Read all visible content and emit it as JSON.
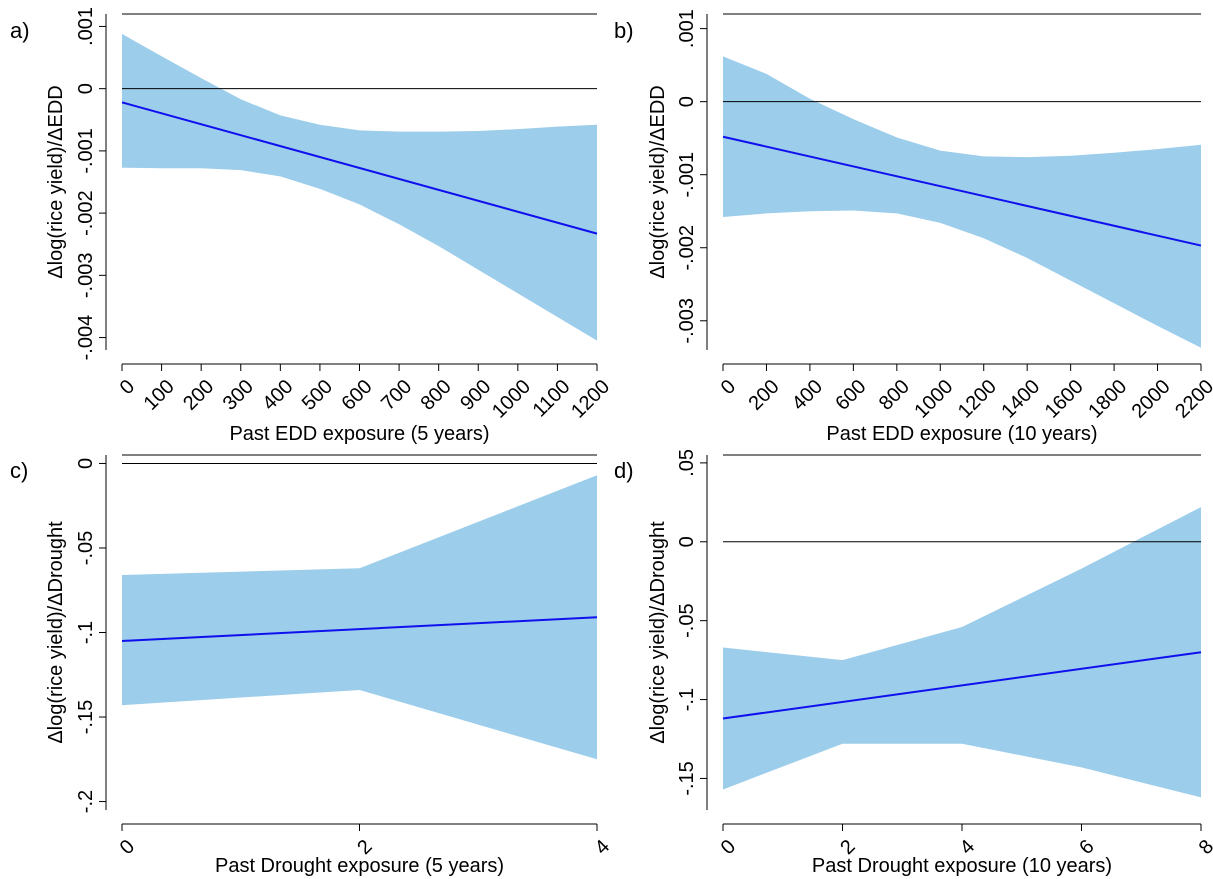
{
  "colors": {
    "band": "#9ccdeb",
    "line": "#1010ee",
    "axis": "#000000",
    "zero": "#000000"
  },
  "chart_data": [
    {
      "id": "a",
      "type": "line",
      "panel_label": "a)",
      "xlabel": "Past EDD exposure (5 years)",
      "ylabel": "Δlog(rice yield)/ΔEDD",
      "xlim": [
        0,
        1200
      ],
      "ylim": [
        -0.0042,
        0.0012
      ],
      "xticks": [
        0,
        100,
        200,
        300,
        400,
        500,
        600,
        700,
        800,
        900,
        1000,
        1100,
        1200
      ],
      "xtick_labels": [
        "0",
        "100",
        "200",
        "300",
        "400",
        "500",
        "600",
        "700",
        "800",
        "900",
        "1000",
        "1100",
        "1200"
      ],
      "yticks": [
        -0.004,
        -0.003,
        -0.002,
        -0.001,
        0,
        0.001
      ],
      "ytick_labels": [
        "-.004",
        "-.003",
        "-.002",
        "-.001",
        "0",
        ".001"
      ],
      "reference_line": 0,
      "estimate": {
        "x": [
          0,
          1200
        ],
        "y": [
          -0.00022,
          -0.00233
        ]
      },
      "ci_band": {
        "x": [
          0,
          100,
          200,
          300,
          400,
          500,
          600,
          700,
          800,
          900,
          1000,
          1100,
          1200
        ],
        "upper": [
          0.00088,
          0.00052,
          0.00017,
          -0.00017,
          -0.00043,
          -0.00058,
          -0.00067,
          -0.00069,
          -0.00069,
          -0.00068,
          -0.00065,
          -0.00061,
          -0.00058
        ],
        "lower": [
          -0.00127,
          -0.00128,
          -0.00128,
          -0.00131,
          -0.00141,
          -0.00161,
          -0.00186,
          -0.00218,
          -0.00253,
          -0.00291,
          -0.00329,
          -0.00367,
          -0.00405
        ]
      }
    },
    {
      "id": "b",
      "type": "line",
      "panel_label": "b)",
      "xlabel": "Past EDD exposure (10 years)",
      "ylabel": "Δlog(rice yield)/ΔEDD",
      "xlim": [
        0,
        2200
      ],
      "ylim": [
        -0.0034,
        0.0012
      ],
      "xticks": [
        0,
        200,
        400,
        600,
        800,
        1000,
        1200,
        1400,
        1600,
        1800,
        2000,
        2200
      ],
      "xtick_labels": [
        "0",
        "200",
        "400",
        "600",
        "800",
        "1000",
        "1200",
        "1400",
        "1600",
        "1800",
        "2000",
        "2200"
      ],
      "yticks": [
        -0.003,
        -0.002,
        -0.001,
        0,
        0.001
      ],
      "ytick_labels": [
        "-.003",
        "-.002",
        "-.001",
        "0",
        ".001"
      ],
      "reference_line": 0,
      "estimate": {
        "x": [
          0,
          2200
        ],
        "y": [
          -0.00048,
          -0.00197
        ]
      },
      "ci_band": {
        "x": [
          0,
          200,
          400,
          600,
          800,
          1000,
          1200,
          1400,
          1600,
          1800,
          2000,
          2200
        ],
        "upper": [
          0.00062,
          0.00038,
          4e-05,
          -0.00024,
          -0.00049,
          -0.00067,
          -0.00075,
          -0.00076,
          -0.00074,
          -0.0007,
          -0.00065,
          -0.00059
        ],
        "lower": [
          -0.00158,
          -0.00153,
          -0.0015,
          -0.00149,
          -0.00153,
          -0.00166,
          -0.00187,
          -0.00214,
          -0.00245,
          -0.00276,
          -0.00307,
          -0.00337
        ]
      }
    },
    {
      "id": "c",
      "type": "line",
      "panel_label": "c)",
      "xlabel": "Past Drought exposure (5 years)",
      "ylabel": "Δlog(rice yield)/ΔDrought",
      "xlim": [
        0,
        4
      ],
      "ylim": [
        -0.205,
        0.005
      ],
      "xticks": [
        0,
        2,
        4
      ],
      "xtick_labels": [
        "0",
        "2",
        "4"
      ],
      "yticks": [
        -0.2,
        -0.15,
        -0.1,
        -0.05,
        0
      ],
      "ytick_labels": [
        "-.2",
        "-.15",
        "-.1",
        "-.05",
        "0"
      ],
      "reference_line": 0,
      "estimate": {
        "x": [
          0,
          4
        ],
        "y": [
          -0.105,
          -0.091
        ]
      },
      "ci_band": {
        "x": [
          0,
          2,
          4
        ],
        "upper": [
          -0.066,
          -0.062,
          -0.007
        ],
        "lower": [
          -0.143,
          -0.134,
          -0.175
        ]
      }
    },
    {
      "id": "d",
      "type": "line",
      "panel_label": "d)",
      "xlabel": "Past Drought exposure (10 years)",
      "ylabel": "Δlog(rice yield)/ΔDrought",
      "xlim": [
        0,
        8
      ],
      "ylim": [
        -0.17,
        0.055
      ],
      "xticks": [
        0,
        2,
        4,
        6,
        8
      ],
      "xtick_labels": [
        "0",
        "2",
        "4",
        "6",
        "8"
      ],
      "yticks": [
        -0.15,
        -0.1,
        -0.05,
        0,
        0.05
      ],
      "ytick_labels": [
        "-.15",
        "-.1",
        "-.05",
        "0",
        ".05"
      ],
      "reference_line": 0,
      "estimate": {
        "x": [
          0,
          8
        ],
        "y": [
          -0.112,
          -0.07
        ]
      },
      "ci_band": {
        "x": [
          0,
          2,
          4,
          6,
          8
        ],
        "upper": [
          -0.067,
          -0.075,
          -0.054,
          -0.017,
          0.022
        ],
        "lower": [
          -0.157,
          -0.128,
          -0.128,
          -0.143,
          -0.162
        ]
      }
    }
  ]
}
